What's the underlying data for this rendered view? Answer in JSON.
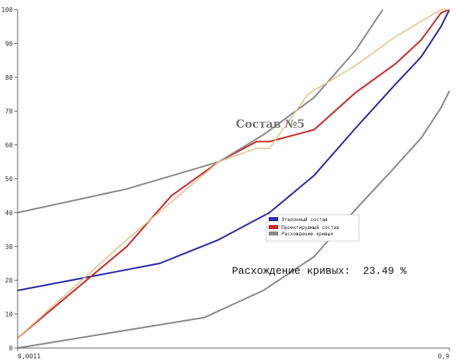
{
  "chart_data": {
    "type": "line",
    "title": "Состав №5",
    "xlabel": "",
    "ylabel": "",
    "xlim": [
      0.0011,
      0.9
    ],
    "ylim": [
      0,
      100
    ],
    "x_ticks": [
      "0,0011",
      "0,9"
    ],
    "y_ticks": [
      0,
      10,
      20,
      30,
      40,
      50,
      60,
      70,
      80,
      90,
      100
    ],
    "grid": false,
    "legend_position": "center-right",
    "annotation": "Расхождение кривых:  23.49 %",
    "series": [
      {
        "name": "Эталонный состав",
        "color": "#2a2aa8",
        "x": [
          0.0011,
          0.01,
          0.025,
          0.055,
          0.11,
          0.21,
          0.39,
          0.58,
          0.79,
          0.9
        ],
        "y": [
          17,
          25,
          32,
          40,
          51,
          65,
          78,
          86,
          95,
          100
        ]
      },
      {
        "name": "Проектируемый состав",
        "color": "#cc2a2a",
        "x": [
          0.0011,
          0.006,
          0.012,
          0.025,
          0.045,
          0.055,
          0.11,
          0.21,
          0.39,
          0.58,
          0.79,
          0.9
        ],
        "y": [
          3,
          30,
          45,
          55,
          61,
          61,
          64.5,
          75.5,
          84,
          91,
          99,
          100
        ]
      },
      {
        "name": "Расхождение кривых",
        "color": "#8a8a8a",
        "x": [
          0.0011,
          0.02,
          0.05,
          0.11,
          0.21,
          0.36,
          0.58,
          0.79,
          0.9
        ],
        "y": [
          0,
          9,
          17,
          27,
          41,
          52,
          62,
          71,
          76
        ]
      },
      {
        "name": "",
        "color": "#8a8a8a",
        "x": [
          0.0011,
          0.006,
          0.025,
          0.05,
          0.11,
          0.21,
          0.32
        ],
        "y": [
          40,
          47,
          55,
          63,
          74,
          88,
          100
        ]
      },
      {
        "name": "",
        "color": "#e8c28a",
        "x": [
          0.0011,
          0.006,
          0.025,
          0.045,
          0.055,
          0.1,
          0.21,
          0.39,
          0.79,
          0.9
        ],
        "y": [
          3,
          32,
          55,
          59,
          59,
          75,
          83.5,
          92,
          100,
          100
        ]
      }
    ]
  }
}
